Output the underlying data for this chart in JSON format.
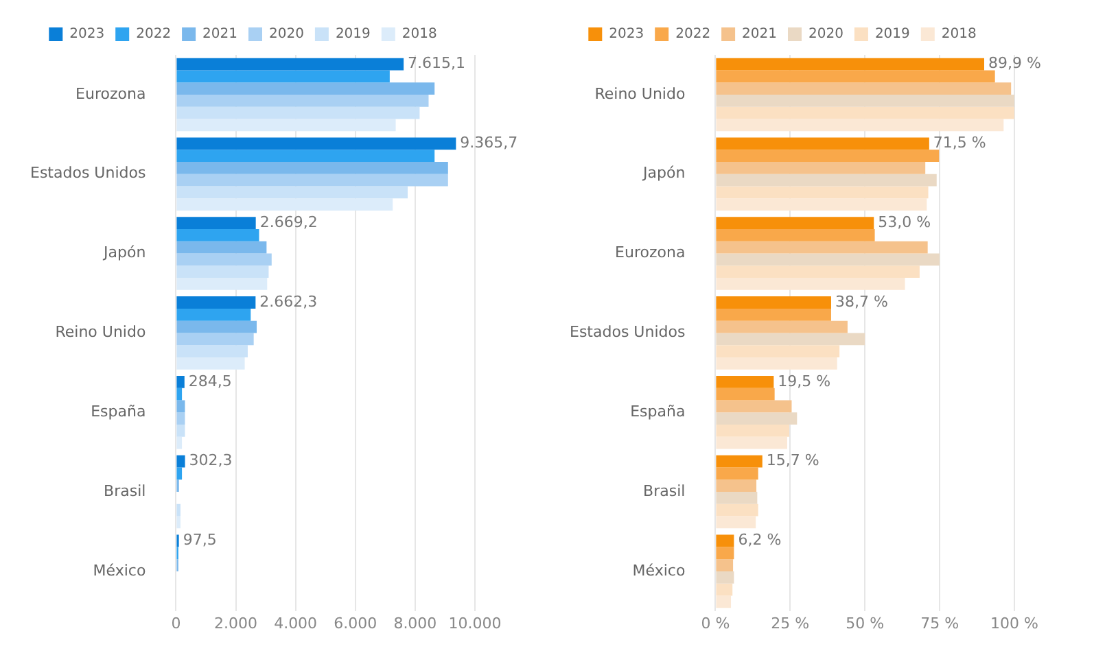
{
  "chart_data": [
    {
      "type": "bar",
      "orientation": "horizontal",
      "categories": [
        "Eurozona",
        "Estados Unidos",
        "Japón",
        "Reino Unido",
        "España",
        "Brasil",
        "México"
      ],
      "legend": "top",
      "grid": "x",
      "xlim": [
        0,
        10000
      ],
      "xticks": [
        0,
        {
          "value": 2000,
          "label": "2.000"
        },
        {
          "value": 4000,
          "label": "4.000"
        },
        {
          "value": 6000,
          "label": "6.000"
        },
        {
          "value": 8000,
          "label": "8.000"
        },
        {
          "value": 10000,
          "label": "10.000"
        }
      ],
      "series": [
        {
          "name": "2023",
          "color": "#0a7fd8",
          "values": [
            7615.1,
            9365.7,
            2669.2,
            2662.3,
            284.5,
            302.3,
            97.5
          ],
          "value_labels": [
            "7.615,1",
            "9.365,7",
            "2.669,2",
            "2.662,3",
            "284,5",
            "302,3",
            "97,5"
          ]
        },
        {
          "name": "2022",
          "color": "#2ea4f0",
          "values": [
            7150,
            8650,
            2780,
            2500,
            200,
            200,
            80
          ]
        },
        {
          "name": "2021",
          "color": "#7ab8ec",
          "values": [
            8650,
            9100,
            3030,
            2700,
            300,
            100,
            80
          ]
        },
        {
          "name": "2020",
          "color": "#a9d0f3",
          "values": [
            8450,
            9100,
            3200,
            2600,
            300,
            null,
            null
          ]
        },
        {
          "name": "2019",
          "color": "#c9e2f8",
          "values": [
            8150,
            7750,
            3100,
            2400,
            300,
            150,
            null
          ]
        },
        {
          "name": "2018",
          "color": "#dcecfa",
          "values": [
            7350,
            7250,
            3050,
            2300,
            200,
            150,
            null
          ]
        }
      ]
    },
    {
      "type": "bar",
      "orientation": "horizontal",
      "categories": [
        "Reino Unido",
        "Japón",
        "Eurozona",
        "Estados Unidos",
        "España",
        "Brasil",
        "México"
      ],
      "legend": "top",
      "grid": "x",
      "xlim": [
        0,
        100
      ],
      "xticks": [
        {
          "value": 0,
          "label": "0 %"
        },
        {
          "value": 25,
          "label": "25 %"
        },
        {
          "value": 50,
          "label": "50 %"
        },
        {
          "value": 75,
          "label": "75 %"
        },
        {
          "value": 100,
          "label": "100 %"
        }
      ],
      "series": [
        {
          "name": "2023",
          "color": "#f7900a",
          "values": [
            89.9,
            71.5,
            53.0,
            38.7,
            19.5,
            15.7,
            6.2
          ],
          "value_labels": [
            "89,9 %",
            "71,5 %",
            "53,0 %",
            "38,7 %",
            "19,5 %",
            "15,7 %",
            "6,2 %"
          ]
        },
        {
          "name": "2022",
          "color": "#f9a84a",
          "values": [
            93.5,
            74.8,
            53.3,
            38.7,
            19.8,
            14.3,
            6.2
          ]
        },
        {
          "name": "2021",
          "color": "#f5c28c",
          "values": [
            98.9,
            70.2,
            71,
            44.2,
            25.5,
            13.7,
            5.9
          ]
        },
        {
          "name": "2020",
          "color": "#ead9c4",
          "values": [
            100,
            74,
            75,
            50,
            27.3,
            14,
            6.2
          ]
        },
        {
          "name": "2019",
          "color": "#fbe0c2",
          "values": [
            100,
            71.2,
            68.3,
            41.5,
            24.7,
            14.3,
            5.7
          ]
        },
        {
          "name": "2018",
          "color": "#fbe8d5",
          "values": [
            96.4,
            70.7,
            63.4,
            40.7,
            24,
            13.5,
            5.2
          ]
        }
      ]
    }
  ]
}
